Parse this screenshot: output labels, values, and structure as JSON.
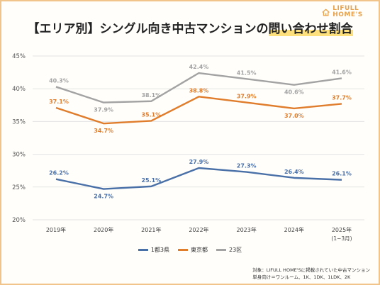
{
  "logo": {
    "brand": "LIFULL HOME'S",
    "icon": "house-icon"
  },
  "title": {
    "prefix": "【エリア別】シングル向き中古マンションの",
    "highlight": "問い合わせ割合"
  },
  "chart_data": {
    "type": "line",
    "title": "【エリア別】シングル向き中古マンションの問い合わせ割合",
    "categories": [
      "2019年",
      "2020年",
      "2021年",
      "2022年",
      "2023年",
      "2024年",
      "2025年"
    ],
    "category_sublabels": [
      "",
      "",
      "",
      "",
      "",
      "",
      "(1~3月)"
    ],
    "y_ticks": [
      "20%",
      "25%",
      "30%",
      "35%",
      "40%",
      "45%"
    ],
    "ylim": [
      20,
      45
    ],
    "grid": true,
    "legend_position": "bottom-center",
    "series": [
      {
        "name": "1都3県",
        "color": "#4a70a8",
        "values": [
          26.2,
          24.7,
          25.1,
          27.9,
          27.3,
          26.4,
          26.1
        ],
        "labels": [
          "26.2%",
          "24.7%",
          "25.1%",
          "27.9%",
          "27.3%",
          "26.4%",
          "26.1%"
        ]
      },
      {
        "name": "東京都",
        "color": "#e07d2c",
        "values": [
          37.1,
          34.7,
          35.1,
          38.8,
          37.9,
          37.0,
          37.7
        ],
        "labels": [
          "37.1%",
          "34.7%",
          "35.1%",
          "38.8%",
          "37.9%",
          "37.0%",
          "37.7%"
        ]
      },
      {
        "name": "23区",
        "color": "#a3a3a3",
        "values": [
          40.3,
          37.9,
          38.1,
          42.4,
          41.5,
          40.6,
          41.6
        ],
        "labels": [
          "40.3%",
          "37.9%",
          "38.1%",
          "42.4%",
          "41.5%",
          "40.6%",
          "41.6%"
        ]
      }
    ]
  },
  "note": {
    "line1": "対象：LIFULL HOME'Sに掲載されていた中古マンション",
    "line2": "単身向け＝ワンルーム、1K、1DK、1LDK、2K"
  }
}
